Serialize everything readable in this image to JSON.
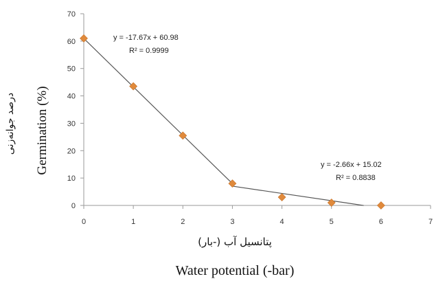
{
  "chart_data": {
    "type": "scatter",
    "xlabel": "Water potential (-bar)",
    "xlabel_alt": "پتانسیل آب (-بار)",
    "ylabel": "Germination (%)",
    "ylabel_alt": "درصد جوانه‌زنی",
    "xlim": [
      0,
      7
    ],
    "ylim": [
      0,
      70
    ],
    "xticks": [
      "0",
      "1",
      "2",
      "3",
      "4",
      "5",
      "6",
      "7"
    ],
    "yticks": [
      "0",
      "10",
      "20",
      "30",
      "40",
      "50",
      "60",
      "70"
    ],
    "grid": false,
    "marker_color": "#E08A3C",
    "line_color": "#555555",
    "series": [
      {
        "x": [
          0,
          1,
          2,
          3,
          4,
          5,
          6
        ],
        "values": [
          61,
          43.5,
          25.5,
          8,
          3,
          1,
          0
        ]
      }
    ],
    "trendlines": [
      {
        "equation": "y = -17.67x + 60.98",
        "r2": "R² = 0.9999",
        "slope": -17.67,
        "intercept": 60.98,
        "x_range": [
          0,
          3
        ]
      },
      {
        "equation": "y = -2.66x + 15.02",
        "r2": "R² = 0.8838",
        "slope": -2.66,
        "intercept": 15.02,
        "x_range": [
          3,
          5.65
        ]
      }
    ]
  }
}
